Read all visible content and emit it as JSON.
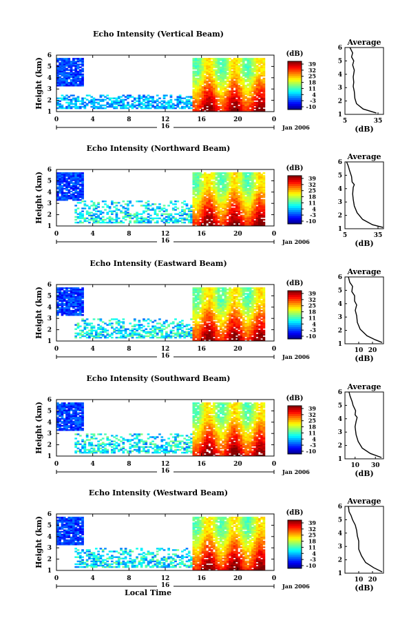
{
  "figure": {
    "shared_xlabel": "Local Time",
    "date_label": "Jan 2006",
    "day_label": "16",
    "colorbar_unit": "(dB)",
    "colorbar_ticks": [
      "39",
      "32",
      "25",
      "18",
      "11",
      "4",
      "-3",
      "-10"
    ],
    "profile_title": "Average",
    "profile_xlabel": "(dB)"
  },
  "chart_data": [
    {
      "type": "heatmap",
      "title": "Echo Intensity (Vertical Beam)",
      "ylabel": "Height (km)",
      "xlabel": "",
      "x_ticks": [
        "0",
        "4",
        "8",
        "12",
        "16",
        "20",
        "0"
      ],
      "xlim": [
        0,
        24
      ],
      "ylim": [
        1,
        6
      ],
      "y_ticks": [
        "1",
        "2",
        "3",
        "4",
        "5",
        "6"
      ],
      "clim": [
        -10,
        39
      ],
      "colorbar_label": "(dB)",
      "colormap": "jet",
      "echo_features": [
        {
          "time": [
            0,
            3
          ],
          "height": [
            3.2,
            5.7
          ],
          "intensity_db": [
            -8,
            3
          ],
          "description": "upper-level layer"
        },
        {
          "time": [
            0,
            15
          ],
          "height": [
            1.3,
            2.5
          ],
          "intensity_db": [
            -5,
            10
          ],
          "description": "scattered low-level echoes"
        },
        {
          "time": [
            15,
            23
          ],
          "height": [
            1.0,
            5.8
          ],
          "intensity_db": [
            10,
            39
          ],
          "description": "deep convective plumes"
        }
      ],
      "profile": {
        "title": "Average",
        "xlabel": "(dB)",
        "xlim": [
          5,
          40
        ],
        "x_ticks": [
          "5",
          "35"
        ],
        "ylim": [
          1,
          6
        ],
        "points": [
          [
            33.5,
            1.1
          ],
          [
            21.5,
            1.4
          ],
          [
            15.5,
            1.8
          ],
          [
            14.0,
            2.2
          ],
          [
            13.5,
            2.7
          ],
          [
            12.5,
            3.1
          ],
          [
            13.0,
            3.4
          ],
          [
            12.5,
            3.8
          ],
          [
            13.5,
            4.3
          ],
          [
            12.0,
            4.7
          ],
          [
            13.0,
            5.0
          ],
          [
            11.0,
            5.3
          ],
          [
            12.0,
            5.6
          ],
          [
            9.5,
            6.0
          ]
        ]
      }
    },
    {
      "type": "heatmap",
      "title": "Echo Intensity (Northward Beam)",
      "ylabel": "Height (km)",
      "xlabel": "",
      "x_ticks": [
        "0",
        "4",
        "8",
        "12",
        "16",
        "20",
        "0"
      ],
      "xlim": [
        0,
        24
      ],
      "ylim": [
        1,
        6
      ],
      "y_ticks": [
        "1",
        "2",
        "3",
        "4",
        "5",
        "6"
      ],
      "clim": [
        -10,
        39
      ],
      "colorbar_label": "(dB)",
      "colormap": "jet",
      "echo_features": [
        {
          "time": [
            0,
            3
          ],
          "height": [
            3.2,
            5.7
          ],
          "intensity_db": [
            -8,
            3
          ],
          "description": "upper-level layer"
        },
        {
          "time": [
            2,
            15
          ],
          "height": [
            1.3,
            3.2
          ],
          "intensity_db": [
            -5,
            15
          ],
          "description": "scattered low-level echoes"
        },
        {
          "time": [
            15,
            23
          ],
          "height": [
            1.0,
            5.8
          ],
          "intensity_db": [
            10,
            39
          ],
          "description": "deep convective plumes"
        }
      ],
      "profile": {
        "title": "Average",
        "xlabel": "(dB)",
        "xlim": [
          5,
          40
        ],
        "x_ticks": [
          "5",
          "35"
        ],
        "ylim": [
          1,
          6
        ],
        "points": [
          [
            39.5,
            1.1
          ],
          [
            30.0,
            1.3
          ],
          [
            21.0,
            1.7
          ],
          [
            16.0,
            2.2
          ],
          [
            13.5,
            2.7
          ],
          [
            12.5,
            3.2
          ],
          [
            12.0,
            3.6
          ],
          [
            12.5,
            4.1
          ],
          [
            13.5,
            4.3
          ],
          [
            11.5,
            4.5
          ],
          [
            11.0,
            4.9
          ],
          [
            9.0,
            5.4
          ],
          [
            8.0,
            5.7
          ],
          [
            6.5,
            6.0
          ]
        ]
      }
    },
    {
      "type": "heatmap",
      "title": "Echo Intensity (Eastward Beam)",
      "ylabel": "Height (km)",
      "xlabel": "",
      "x_ticks": [
        "0",
        "4",
        "8",
        "12",
        "16",
        "20",
        "0"
      ],
      "xlim": [
        0,
        24
      ],
      "ylim": [
        1,
        6
      ],
      "y_ticks": [
        "1",
        "2",
        "3",
        "4",
        "5",
        "6"
      ],
      "clim": [
        -10,
        39
      ],
      "colorbar_label": "(dB)",
      "colormap": "jet",
      "echo_features": [
        {
          "time": [
            0,
            3
          ],
          "height": [
            3.2,
            5.7
          ],
          "intensity_db": [
            -8,
            3
          ],
          "description": "upper-level layer"
        },
        {
          "time": [
            2,
            15
          ],
          "height": [
            1.3,
            3.0
          ],
          "intensity_db": [
            -5,
            15
          ],
          "description": "scattered low-level echoes"
        },
        {
          "time": [
            15,
            23
          ],
          "height": [
            1.0,
            5.8
          ],
          "intensity_db": [
            10,
            39
          ],
          "description": "deep convective plumes"
        }
      ],
      "profile": {
        "title": "Average",
        "xlabel": "(dB)",
        "xlim": [
          0,
          28
        ],
        "x_ticks": [
          "10",
          "20"
        ],
        "ylim": [
          1,
          6
        ],
        "points": [
          [
            27.0,
            1.1
          ],
          [
            22.0,
            1.3
          ],
          [
            16.0,
            1.6
          ],
          [
            11.0,
            2.1
          ],
          [
            9.0,
            2.6
          ],
          [
            8.5,
            3.1
          ],
          [
            7.5,
            3.5
          ],
          [
            8.5,
            3.9
          ],
          [
            7.0,
            4.2
          ],
          [
            7.0,
            4.6
          ],
          [
            5.0,
            4.9
          ],
          [
            5.5,
            5.3
          ],
          [
            3.5,
            5.6
          ],
          [
            2.5,
            6.0
          ]
        ]
      }
    },
    {
      "type": "heatmap",
      "title": "Echo Intensity (Southward Beam)",
      "ylabel": "Height (km)",
      "xlabel": "",
      "x_ticks": [
        "0",
        "4",
        "8",
        "12",
        "16",
        "20",
        "0"
      ],
      "xlim": [
        0,
        24
      ],
      "ylim": [
        1,
        6
      ],
      "y_ticks": [
        "1",
        "2",
        "3",
        "4",
        "5",
        "6"
      ],
      "clim": [
        -10,
        39
      ],
      "colorbar_label": "(dB)",
      "colormap": "jet",
      "echo_features": [
        {
          "time": [
            0,
            3
          ],
          "height": [
            3.2,
            5.7
          ],
          "intensity_db": [
            -8,
            3
          ],
          "description": "upper-level layer"
        },
        {
          "time": [
            2,
            15
          ],
          "height": [
            1.3,
            3.0
          ],
          "intensity_db": [
            -5,
            15
          ],
          "description": "scattered low-level echoes"
        },
        {
          "time": [
            15,
            23
          ],
          "height": [
            1.0,
            5.8
          ],
          "intensity_db": [
            10,
            39
          ],
          "description": "deep convective plumes"
        }
      ],
      "profile": {
        "title": "Average",
        "xlabel": "(dB)",
        "xlim": [
          0,
          38
        ],
        "x_ticks": [
          "10",
          "30"
        ],
        "ylim": [
          1,
          6
        ],
        "points": [
          [
            36.0,
            1.1
          ],
          [
            25.0,
            1.4
          ],
          [
            17.0,
            1.8
          ],
          [
            13.0,
            2.3
          ],
          [
            11.0,
            2.8
          ],
          [
            10.0,
            3.4
          ],
          [
            11.0,
            3.8
          ],
          [
            12.0,
            4.1
          ],
          [
            10.0,
            4.3
          ],
          [
            10.5,
            4.6
          ],
          [
            8.0,
            5.0
          ],
          [
            7.0,
            5.3
          ],
          [
            5.0,
            5.7
          ],
          [
            4.0,
            6.0
          ]
        ]
      }
    },
    {
      "type": "heatmap",
      "title": "Echo Intensity (Westward Beam)",
      "ylabel": "Height (km)",
      "xlabel": "Local Time",
      "x_ticks": [
        "0",
        "4",
        "8",
        "12",
        "16",
        "20",
        "0"
      ],
      "xlim": [
        0,
        24
      ],
      "ylim": [
        1,
        6
      ],
      "y_ticks": [
        "1",
        "2",
        "3",
        "4",
        "5",
        "6"
      ],
      "clim": [
        -10,
        39
      ],
      "colorbar_label": "(dB)",
      "colormap": "jet",
      "echo_features": [
        {
          "time": [
            0,
            3
          ],
          "height": [
            3.2,
            5.7
          ],
          "intensity_db": [
            -8,
            3
          ],
          "description": "upper-level layer"
        },
        {
          "time": [
            2,
            15
          ],
          "height": [
            1.3,
            3.0
          ],
          "intensity_db": [
            -5,
            15
          ],
          "description": "scattered low-level echoes"
        },
        {
          "time": [
            15,
            23
          ],
          "height": [
            1.0,
            5.8
          ],
          "intensity_db": [
            10,
            39
          ],
          "description": "deep convective plumes"
        }
      ],
      "profile": {
        "title": "Average",
        "xlabel": "(dB)",
        "xlim": [
          0,
          28
        ],
        "x_ticks": [
          "10",
          "20"
        ],
        "ylim": [
          1,
          6
        ],
        "points": [
          [
            27.0,
            1.1
          ],
          [
            21.0,
            1.4
          ],
          [
            15.0,
            1.8
          ],
          [
            12.0,
            2.3
          ],
          [
            10.0,
            2.8
          ],
          [
            10.0,
            3.4
          ],
          [
            9.0,
            3.8
          ],
          [
            8.5,
            4.2
          ],
          [
            7.5,
            4.6
          ],
          [
            5.5,
            5.0
          ],
          [
            4.5,
            5.3
          ],
          [
            3.0,
            5.6
          ],
          [
            2.5,
            6.0
          ]
        ]
      }
    }
  ]
}
